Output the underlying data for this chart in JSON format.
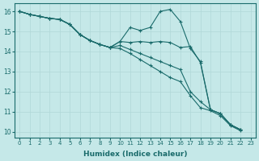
{
  "xlabel": "Humidex (Indice chaleur)",
  "xlim": [
    -0.5,
    23.5
  ],
  "ylim": [
    9.7,
    16.4
  ],
  "xticks": [
    0,
    1,
    2,
    3,
    4,
    5,
    6,
    7,
    8,
    9,
    10,
    11,
    12,
    13,
    14,
    15,
    16,
    17,
    18,
    19,
    20,
    21,
    22,
    23
  ],
  "yticks": [
    10,
    11,
    12,
    13,
    14,
    15,
    16
  ],
  "bg": "#c5e8e8",
  "lc": "#1a6b6b",
  "gc": "#b0d8d8",
  "series": [
    {
      "x": [
        0,
        1,
        2,
        3,
        4,
        5,
        6,
        7,
        8,
        9,
        10,
        11,
        12,
        13,
        14,
        15,
        16,
        17,
        18,
        19,
        20,
        21,
        22
      ],
      "y": [
        16.0,
        15.85,
        15.75,
        15.65,
        15.6,
        15.35,
        14.85,
        14.55,
        14.35,
        14.2,
        14.5,
        15.2,
        15.05,
        15.2,
        16.0,
        16.1,
        15.5,
        14.15,
        13.5,
        11.1,
        10.9,
        10.35,
        10.1
      ]
    },
    {
      "x": [
        0,
        1,
        2,
        3,
        4,
        5,
        6,
        7,
        8,
        9,
        10,
        11,
        12,
        13,
        14,
        15,
        16,
        17,
        18,
        19,
        20,
        21,
        22
      ],
      "y": [
        16.0,
        15.85,
        15.75,
        15.65,
        15.6,
        15.35,
        14.85,
        14.55,
        14.35,
        14.2,
        14.5,
        14.45,
        14.5,
        14.45,
        14.5,
        14.45,
        14.2,
        14.25,
        13.45,
        11.1,
        10.9,
        10.35,
        10.1
      ]
    },
    {
      "x": [
        0,
        1,
        2,
        3,
        4,
        5,
        6,
        7,
        8,
        9,
        10,
        11,
        12,
        13,
        14,
        15,
        16,
        17,
        18,
        19,
        20,
        21,
        22
      ],
      "y": [
        16.0,
        15.85,
        15.75,
        15.65,
        15.6,
        15.35,
        14.85,
        14.55,
        14.35,
        14.2,
        14.3,
        14.1,
        13.9,
        13.7,
        13.5,
        13.3,
        13.1,
        12.0,
        11.5,
        11.1,
        10.9,
        10.35,
        10.1
      ]
    },
    {
      "x": [
        0,
        1,
        2,
        3,
        4,
        5,
        6,
        7,
        8,
        9,
        10,
        11,
        12,
        13,
        14,
        15,
        16,
        17,
        18,
        19,
        20,
        21,
        22
      ],
      "y": [
        16.0,
        15.85,
        15.75,
        15.65,
        15.6,
        15.35,
        14.85,
        14.55,
        14.35,
        14.2,
        14.15,
        13.9,
        13.6,
        13.3,
        13.0,
        12.7,
        12.5,
        11.8,
        11.2,
        11.05,
        10.8,
        10.3,
        10.05
      ]
    }
  ]
}
